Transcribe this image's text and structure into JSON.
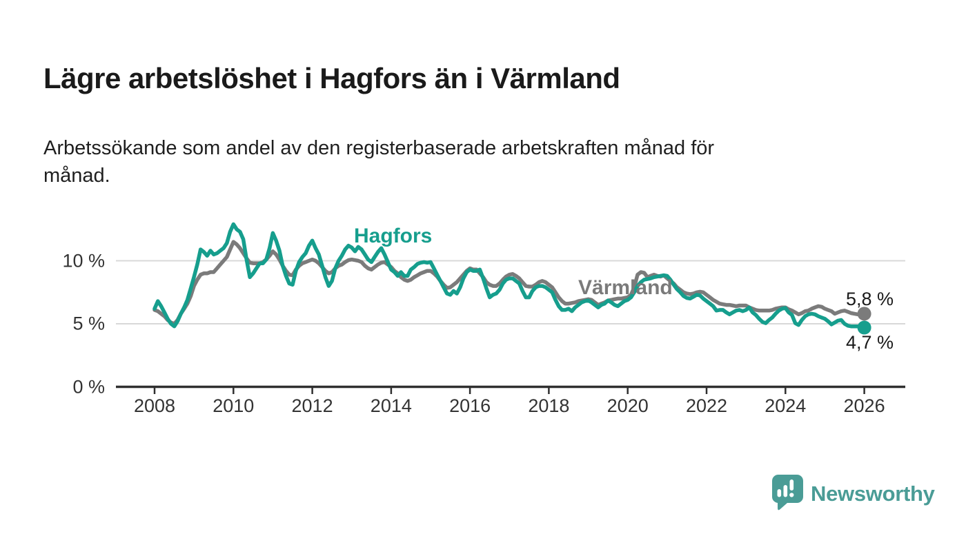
{
  "header": {
    "title": "Lägre arbetslöshet i Hagfors än i Värmland",
    "subtitle": "Arbetssökande som andel av den registerbaserade arbetskraften månad för\nmånad."
  },
  "branding": {
    "name": "Newsworthy",
    "icon": "newsworthy-speech-bubble-chart-icon",
    "color": "#4a9c96"
  },
  "chart_data": {
    "type": "line",
    "title": "Lägre arbetslöshet i Hagfors än i Värmland",
    "xlabel": "",
    "ylabel": "Arbetssökande som andel av den registerbaserade arbetskraften",
    "unit": "%",
    "frequency": "monthly",
    "x_start": 2008.0,
    "xlim": [
      2007.02,
      2027.04
    ],
    "ylim": [
      0,
      13.8
    ],
    "x_ticks": [
      2008,
      2010,
      2012,
      2014,
      2016,
      2018,
      2020,
      2022,
      2024,
      2026
    ],
    "y_ticks": [
      {
        "value": 0,
        "label": "0 %"
      },
      {
        "value": 5,
        "label": "5 %"
      },
      {
        "value": 10,
        "label": "10 %"
      }
    ],
    "grid_values": [
      5,
      10
    ],
    "grid_color": "#d8d8d8",
    "axis_color": "#2f2f2f",
    "legend_position": "inline-labels",
    "series": [
      {
        "name": "Hagfors",
        "color": "#169e8d",
        "end_label": "4,7 %",
        "end_value": 4.7,
        "values": [
          6.2,
          6.8,
          6.4,
          5.9,
          5.4,
          5.0,
          4.8,
          5.2,
          5.8,
          6.3,
          6.9,
          7.8,
          8.7,
          9.7,
          10.9,
          10.7,
          10.4,
          10.8,
          10.5,
          10.6,
          10.8,
          11.0,
          11.4,
          12.3,
          12.9,
          12.5,
          12.3,
          11.7,
          10.1,
          8.7,
          9.0,
          9.4,
          9.8,
          9.8,
          10.1,
          11.0,
          12.2,
          11.6,
          10.8,
          9.6,
          8.8,
          8.2,
          8.1,
          9.2,
          9.9,
          10.3,
          10.6,
          11.2,
          11.6,
          11.0,
          10.5,
          9.6,
          8.7,
          8.0,
          8.4,
          9.4,
          10.0,
          10.4,
          10.9,
          11.2,
          11.05,
          10.75,
          11.1,
          10.9,
          10.5,
          10.1,
          9.9,
          10.3,
          10.7,
          11.0,
          10.5,
          9.9,
          9.3,
          9.1,
          8.8,
          9.1,
          8.8,
          8.8,
          9.3,
          9.5,
          9.75,
          9.85,
          9.9,
          9.85,
          9.9,
          9.4,
          8.9,
          8.4,
          7.9,
          7.4,
          7.3,
          7.6,
          7.4,
          7.9,
          8.6,
          9.1,
          9.3,
          9.2,
          9.2,
          9.3,
          8.6,
          7.8,
          7.1,
          7.3,
          7.4,
          7.7,
          8.2,
          8.5,
          8.6,
          8.6,
          8.4,
          8.2,
          7.6,
          7.1,
          7.1,
          7.6,
          7.9,
          8.0,
          8.0,
          7.9,
          7.7,
          7.5,
          6.9,
          6.4,
          6.1,
          6.1,
          6.2,
          6.0,
          6.3,
          6.5,
          6.7,
          6.8,
          6.85,
          6.7,
          6.5,
          6.3,
          6.5,
          6.6,
          6.85,
          6.7,
          6.5,
          6.4,
          6.6,
          6.8,
          6.9,
          7.1,
          7.5,
          8.0,
          8.3,
          8.5,
          8.55,
          8.6,
          8.7,
          8.75,
          8.8,
          8.85,
          8.8,
          8.5,
          8.1,
          7.75,
          7.5,
          7.2,
          7.05,
          7.0,
          7.15,
          7.3,
          7.25,
          7.0,
          6.8,
          6.6,
          6.4,
          6.05,
          6.1,
          6.1,
          5.9,
          5.75,
          5.9,
          6.05,
          6.1,
          6.0,
          6.1,
          6.3,
          5.9,
          5.7,
          5.4,
          5.15,
          5.05,
          5.3,
          5.5,
          5.8,
          6.05,
          6.2,
          6.25,
          5.9,
          5.7,
          5.05,
          4.9,
          5.3,
          5.6,
          5.75,
          5.8,
          5.75,
          5.6,
          5.5,
          5.4,
          5.2,
          4.95,
          5.1,
          5.25,
          5.3,
          5.0,
          4.85,
          4.8,
          4.8,
          4.8,
          4.75,
          4.7
        ]
      },
      {
        "name": "Värmland",
        "color": "#7b7b7b",
        "end_label": "5,8 %",
        "end_value": 5.8,
        "values": [
          6.1,
          6.0,
          5.8,
          5.6,
          5.3,
          5.1,
          5.0,
          5.3,
          5.8,
          6.2,
          6.6,
          7.2,
          8.0,
          8.5,
          8.9,
          9.0,
          9.0,
          9.1,
          9.1,
          9.4,
          9.7,
          10.0,
          10.3,
          10.9,
          11.5,
          11.3,
          11.0,
          10.6,
          10.2,
          9.85,
          9.8,
          9.8,
          9.8,
          9.9,
          10.1,
          10.4,
          10.75,
          10.5,
          10.1,
          9.6,
          9.2,
          8.9,
          8.85,
          9.3,
          9.6,
          9.8,
          9.9,
          10.0,
          10.1,
          10.0,
          9.8,
          9.5,
          9.2,
          9.0,
          9.1,
          9.4,
          9.6,
          9.7,
          9.9,
          10.05,
          10.1,
          10.05,
          10.0,
          9.9,
          9.6,
          9.4,
          9.3,
          9.5,
          9.7,
          9.85,
          9.9,
          9.7,
          9.5,
          9.2,
          9.0,
          8.7,
          8.5,
          8.4,
          8.5,
          8.7,
          8.85,
          9.0,
          9.1,
          9.2,
          9.2,
          9.0,
          8.75,
          8.4,
          8.1,
          7.85,
          7.9,
          8.1,
          8.3,
          8.6,
          8.9,
          9.2,
          9.4,
          9.3,
          9.3,
          9.0,
          8.7,
          8.3,
          8.1,
          8.0,
          8.0,
          8.2,
          8.5,
          8.75,
          8.9,
          8.95,
          8.8,
          8.6,
          8.3,
          8.0,
          7.95,
          7.95,
          8.1,
          8.3,
          8.4,
          8.3,
          8.1,
          7.9,
          7.5,
          7.1,
          6.8,
          6.6,
          6.6,
          6.65,
          6.7,
          6.8,
          6.85,
          6.9,
          6.95,
          6.9,
          6.7,
          6.5,
          6.6,
          6.7,
          6.85,
          6.9,
          6.95,
          7.0,
          7.0,
          7.05,
          7.1,
          7.3,
          7.9,
          8.9,
          9.1,
          9.05,
          8.7,
          8.8,
          8.9,
          8.8,
          8.75,
          8.85,
          8.6,
          8.4,
          8.2,
          7.9,
          7.7,
          7.5,
          7.4,
          7.35,
          7.4,
          7.5,
          7.55,
          7.5,
          7.3,
          7.1,
          6.9,
          6.75,
          6.6,
          6.55,
          6.5,
          6.5,
          6.45,
          6.4,
          6.45,
          6.45,
          6.45,
          6.3,
          6.2,
          6.1,
          6.05,
          6.05,
          6.05,
          6.05,
          6.1,
          6.2,
          6.25,
          6.3,
          6.3,
          6.15,
          6.05,
          5.9,
          5.75,
          5.85,
          6.0,
          6.05,
          6.2,
          6.3,
          6.4,
          6.35,
          6.2,
          6.1,
          6.0,
          5.8,
          5.9,
          6.0,
          6.05,
          5.95,
          5.85,
          5.8,
          5.75,
          5.75,
          5.8
        ]
      }
    ]
  }
}
